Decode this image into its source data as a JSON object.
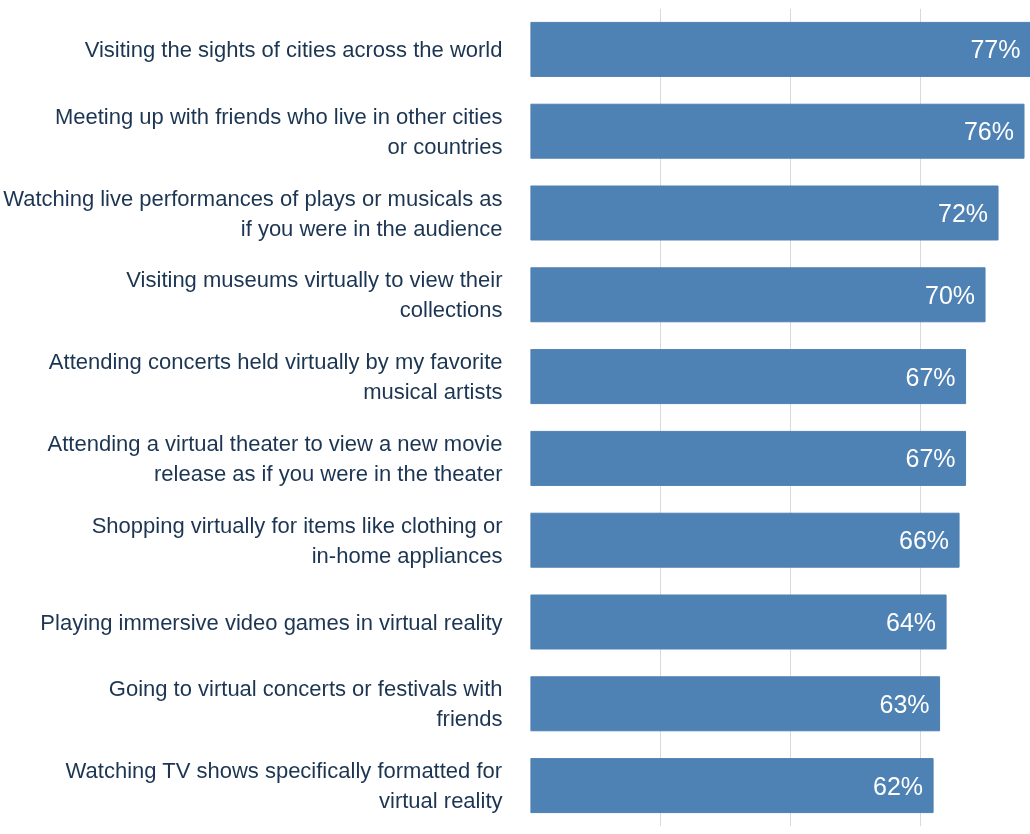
{
  "chart_data": {
    "type": "bar",
    "orientation": "horizontal",
    "categories": [
      "Visiting the sights of cities across the world",
      "Meeting up with friends who live in other cities or countries",
      "Watching live performances of plays or musicals as if you were in the audience",
      "Visiting museums virtually to view their collections",
      "Attending concerts held virtually by my favorite musical artists",
      "Attending a virtual theater to view a new movie release as if you were in the theater",
      "Shopping virtually for items like clothing or in-home appliances",
      "Playing immersive video games in virtual reality",
      "Going to virtual concerts or festivals with friends",
      "Watching TV shows specifically formatted for virtual reality"
    ],
    "values": [
      77,
      76,
      72,
      70,
      67,
      67,
      66,
      64,
      63,
      62
    ],
    "value_labels": [
      "77%",
      "76%",
      "72%",
      "70%",
      "67%",
      "67%",
      "66%",
      "64%",
      "63%",
      "62%"
    ],
    "color": "#4e81b4",
    "grid": "x",
    "tick_labels": "y"
  }
}
